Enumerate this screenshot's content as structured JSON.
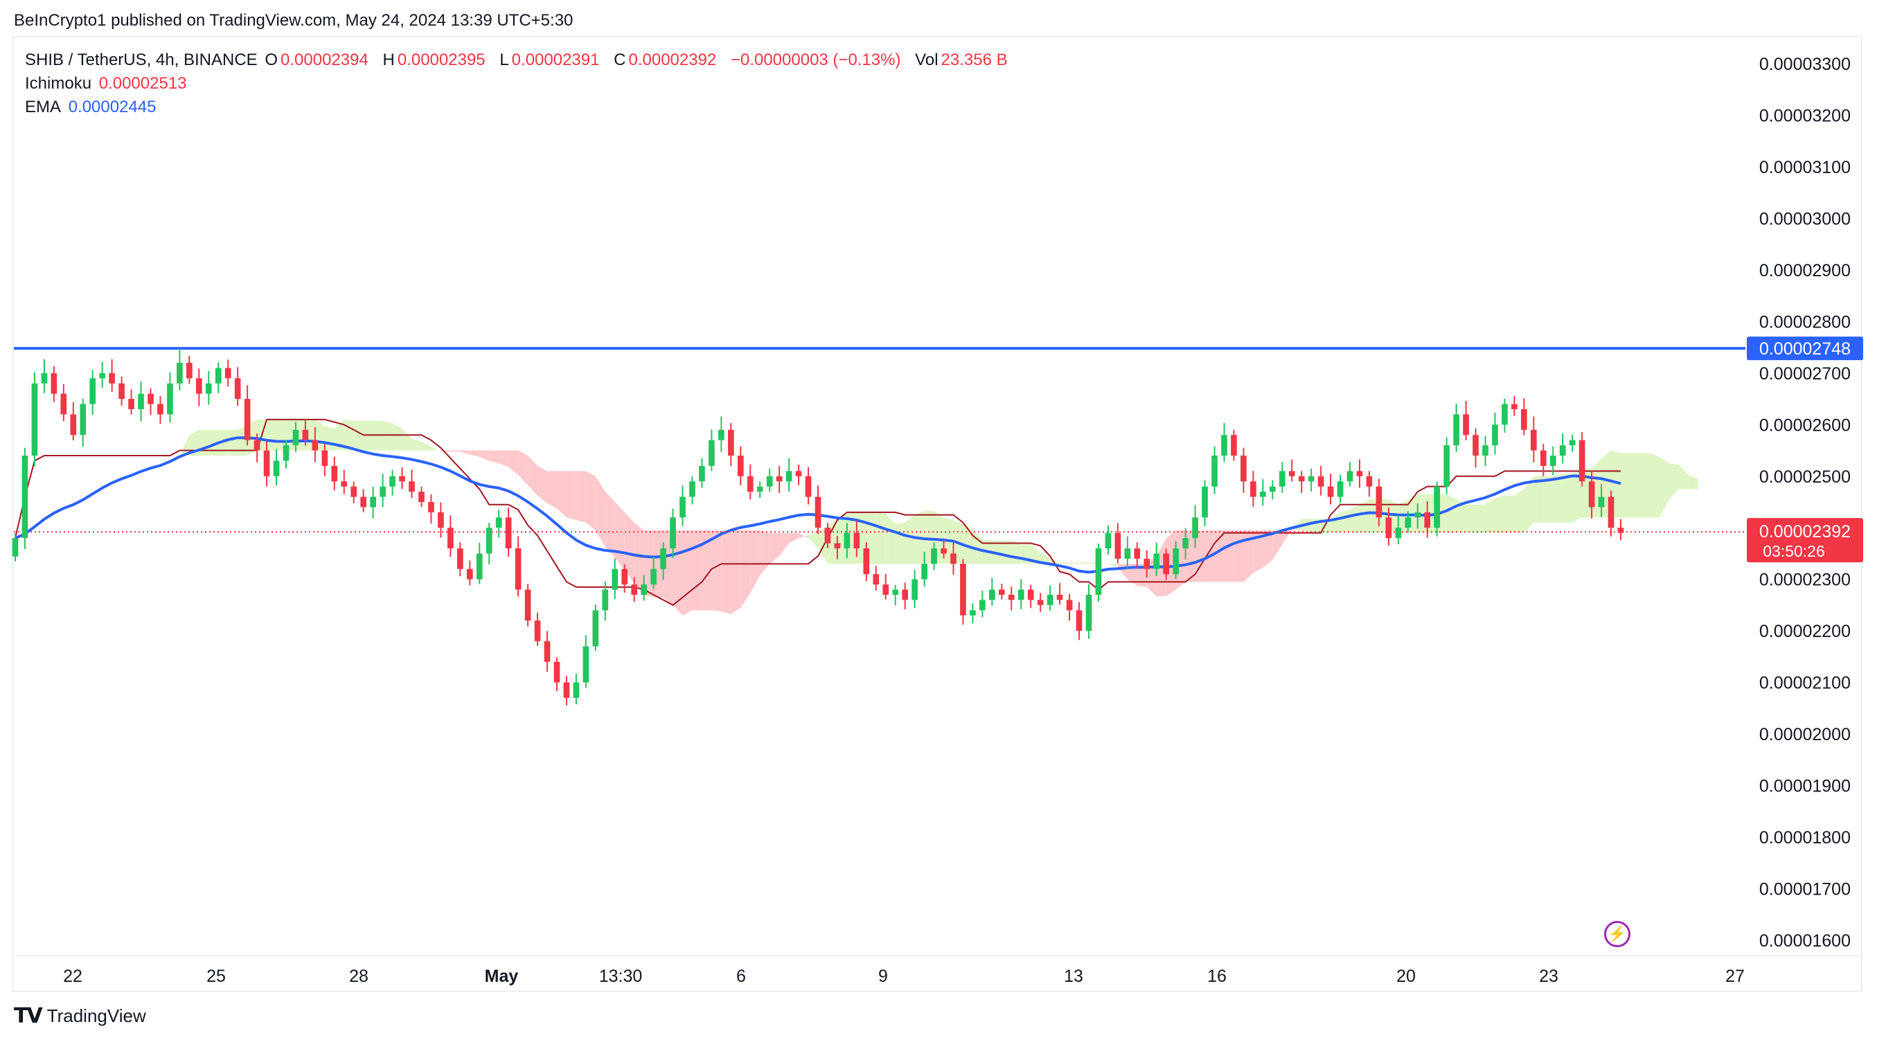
{
  "header": {
    "published": "BeInCrypto1 published on TradingView.com, May 24, 2024 13:39 UTC+5:30"
  },
  "legend": {
    "symbol": "SHIB / TetherUS, 4h, BINANCE",
    "open_label": "O",
    "open": "0.00002394",
    "high_label": "H",
    "high": "0.00002395",
    "low_label": "L",
    "low": "0.00002391",
    "close_label": "C",
    "close": "0.00002392",
    "change": "−0.00000003 (−0.13%)",
    "vol_label": "Vol",
    "vol": "23.356 B",
    "ichimoku_label": "Ichimoku",
    "ichimoku_value": "0.00002513",
    "ema_label": "EMA",
    "ema_value": "0.00002445"
  },
  "footer": {
    "brand": "TradingView"
  },
  "colors": {
    "up": "#22c55e",
    "down": "#f23645",
    "ema": "#2962ff",
    "resistance": "#2962ff",
    "cloud_bull": "#dff5c4",
    "cloud_bear": "#fdc9cc",
    "baseline": "#a31621"
  },
  "chart_data": {
    "type": "candlestick",
    "symbol": "SHIB / TetherUS",
    "timeframe": "4h",
    "ylim": [
      1.55e-05,
      3.35e-05
    ],
    "y_ticks": [
      "0.00003300",
      "0.00003200",
      "0.00003100",
      "0.00003000",
      "0.00002900",
      "0.00002800",
      "0.00002700",
      "0.00002600",
      "0.00002500",
      "0.00002400",
      "0.00002300",
      "0.00002200",
      "0.00002100",
      "0.00002000",
      "0.00001900",
      "0.00001800",
      "0.00001700",
      "0.00001600"
    ],
    "x_ticks": [
      "22",
      "25",
      "28",
      "May",
      "13:30",
      "6",
      "9",
      "13",
      "16",
      "20",
      "23",
      "27"
    ],
    "resistance_line": {
      "value": 2.748e-05,
      "label": "0.00002748"
    },
    "last_price": {
      "value": 2.392e-05,
      "label": "0.00002392",
      "countdown": "03:50:26"
    },
    "close_series": [
      2.38e-05,
      2.54e-05,
      2.68e-05,
      2.7e-05,
      2.66e-05,
      2.62e-05,
      2.58e-05,
      2.64e-05,
      2.69e-05,
      2.7e-05,
      2.68e-05,
      2.65e-05,
      2.63e-05,
      2.66e-05,
      2.64e-05,
      2.62e-05,
      2.68e-05,
      2.72e-05,
      2.69e-05,
      2.66e-05,
      2.68e-05,
      2.71e-05,
      2.69e-05,
      2.65e-05,
      2.57e-05,
      2.55e-05,
      2.5e-05,
      2.53e-05,
      2.56e-05,
      2.59e-05,
      2.57e-05,
      2.55e-05,
      2.52e-05,
      2.49e-05,
      2.48e-05,
      2.46e-05,
      2.44e-05,
      2.46e-05,
      2.48e-05,
      2.5e-05,
      2.49e-05,
      2.47e-05,
      2.45e-05,
      2.43e-05,
      2.4e-05,
      2.36e-05,
      2.32e-05,
      2.3e-05,
      2.35e-05,
      2.4e-05,
      2.42e-05,
      2.36e-05,
      2.28e-05,
      2.22e-05,
      2.18e-05,
      2.14e-05,
      2.1e-05,
      2.07e-05,
      2.1e-05,
      2.17e-05,
      2.24e-05,
      2.28e-05,
      2.32e-05,
      2.29e-05,
      2.27e-05,
      2.29e-05,
      2.32e-05,
      2.36e-05,
      2.42e-05,
      2.46e-05,
      2.49e-05,
      2.52e-05,
      2.57e-05,
      2.59e-05,
      2.54e-05,
      2.5e-05,
      2.47e-05,
      2.48e-05,
      2.5e-05,
      2.49e-05,
      2.51e-05,
      2.5e-05,
      2.46e-05,
      2.4e-05,
      2.37e-05,
      2.36e-05,
      2.39e-05,
      2.36e-05,
      2.31e-05,
      2.29e-05,
      2.27e-05,
      2.28e-05,
      2.26e-05,
      2.3e-05,
      2.33e-05,
      2.36e-05,
      2.35e-05,
      2.33e-05,
      2.23e-05,
      2.24e-05,
      2.26e-05,
      2.28e-05,
      2.27e-05,
      2.26e-05,
      2.28e-05,
      2.26e-05,
      2.25e-05,
      2.27e-05,
      2.26e-05,
      2.24e-05,
      2.2e-05,
      2.27e-05,
      2.36e-05,
      2.39e-05,
      2.34e-05,
      2.36e-05,
      2.34e-05,
      2.32e-05,
      2.35e-05,
      2.31e-05,
      2.36e-05,
      2.38e-05,
      2.42e-05,
      2.48e-05,
      2.54e-05,
      2.58e-05,
      2.54e-05,
      2.49e-05,
      2.46e-05,
      2.47e-05,
      2.48e-05,
      2.51e-05,
      2.5e-05,
      2.49e-05,
      2.5e-05,
      2.48e-05,
      2.46e-05,
      2.49e-05,
      2.51e-05,
      2.5e-05,
      2.48e-05,
      2.42e-05,
      2.38e-05,
      2.4e-05,
      2.42e-05,
      2.43e-05,
      2.4e-05,
      2.48e-05,
      2.56e-05,
      2.62e-05,
      2.58e-05,
      2.54e-05,
      2.56e-05,
      2.6e-05,
      2.64e-05,
      2.63e-05,
      2.59e-05,
      2.55e-05,
      2.52e-05,
      2.54e-05,
      2.56e-05,
      2.57e-05,
      2.49e-05,
      2.44e-05,
      2.46e-05,
      2.4e-05,
      2.39e-05
    ]
  }
}
